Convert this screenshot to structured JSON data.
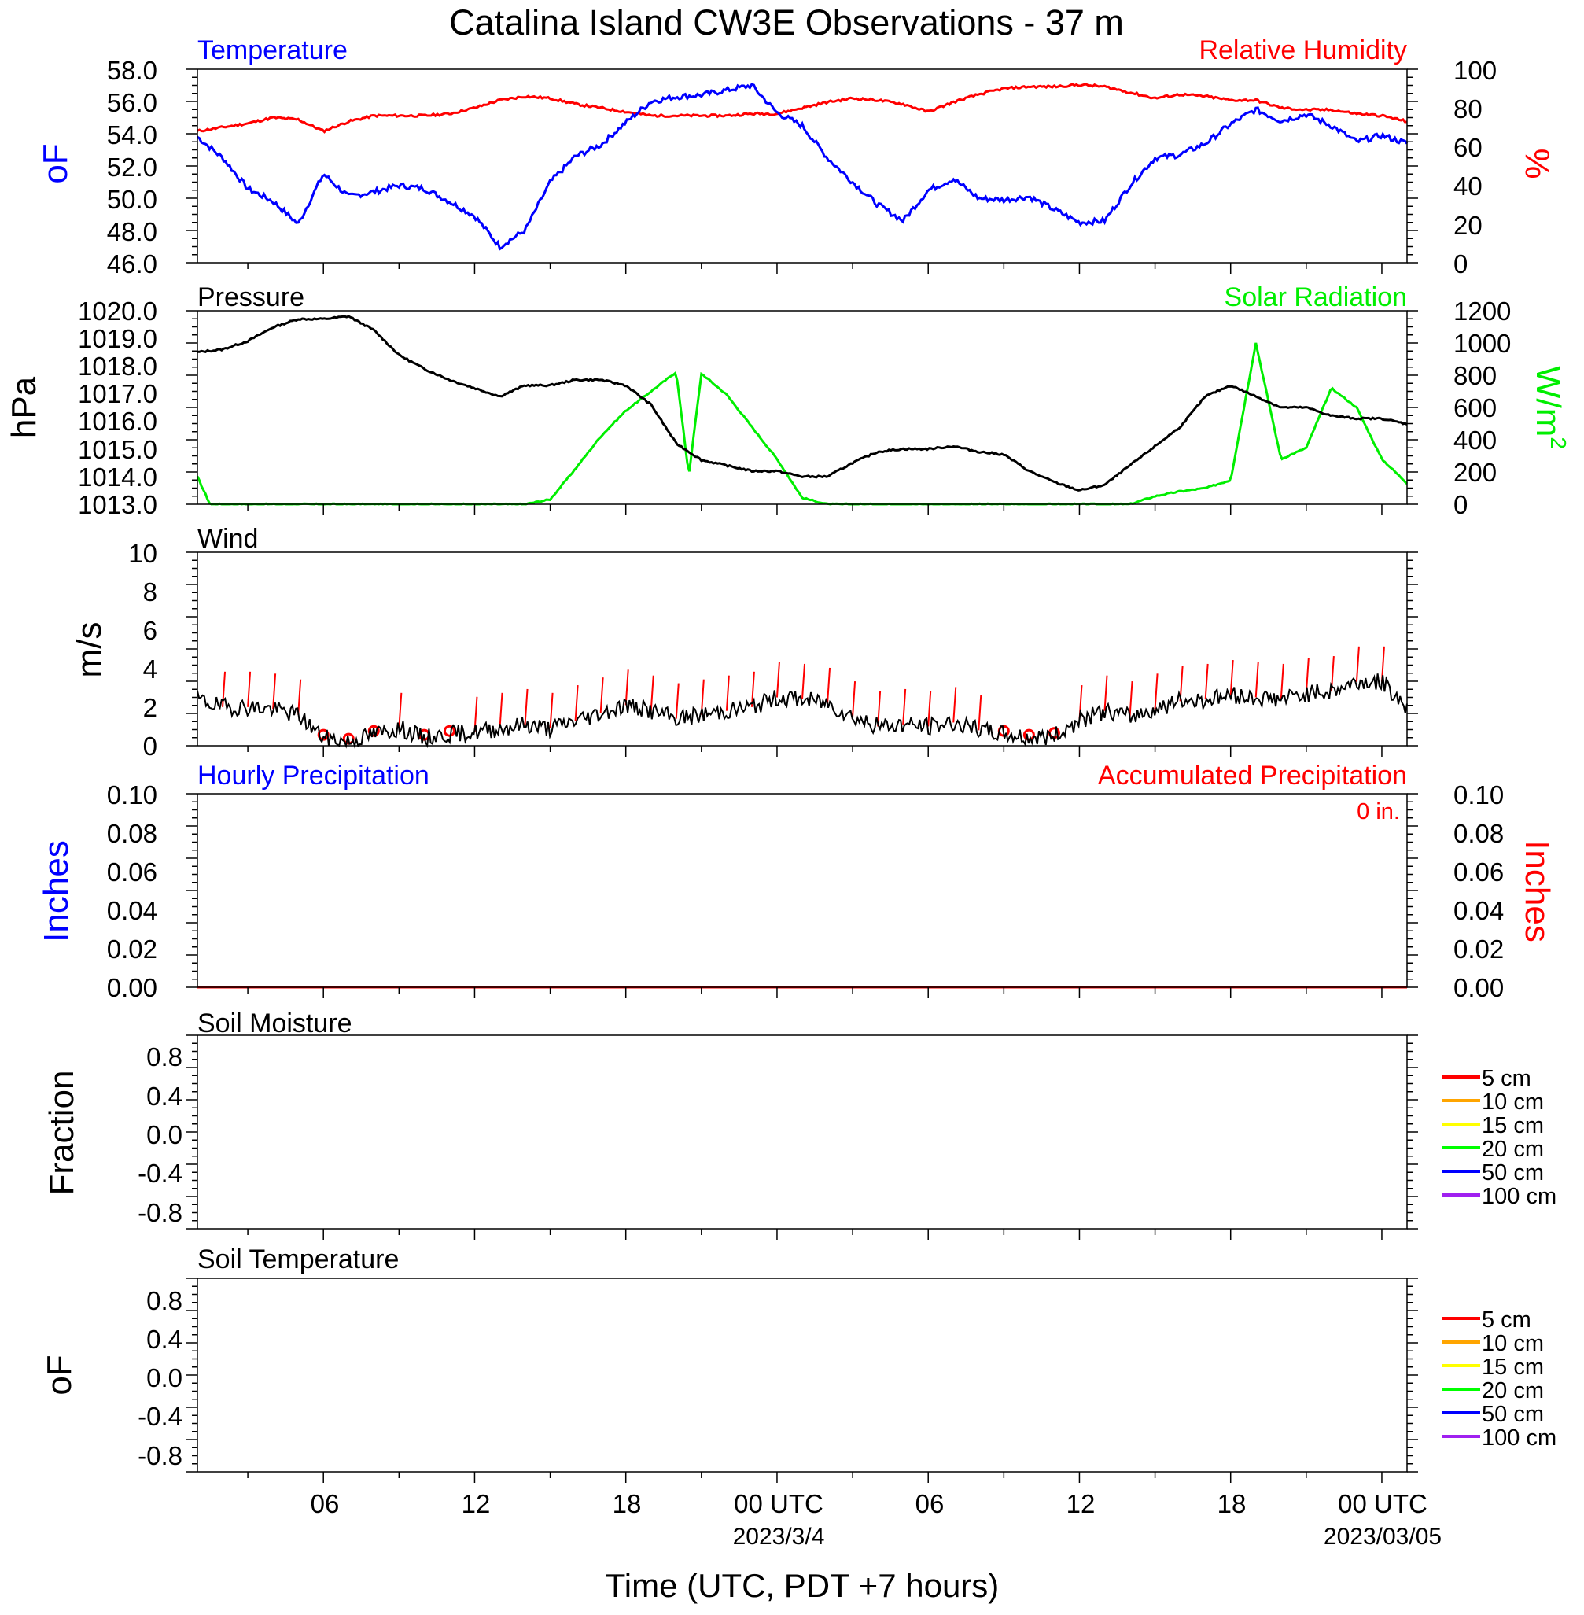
{
  "title": "Catalina Island CW3E Observations - 37 m",
  "x_axis": {
    "label": "Time (UTC, PDT +7 hours)",
    "tick_labels": [
      "06",
      "12",
      "18",
      "00 UTC",
      "06",
      "12",
      "18",
      "00 UTC"
    ],
    "tick_hours": [
      6,
      12,
      18,
      24,
      30,
      36,
      42,
      48
    ],
    "date_labels": [
      {
        "text": "2023/3/4",
        "hour": 24
      },
      {
        "text": "2023/03/05",
        "hour": 48
      }
    ],
    "range_hours": [
      1,
      49
    ]
  },
  "colors": {
    "temperature": "#0000ff",
    "relative_humidity": "#ff0000",
    "pressure": "#000000",
    "solar": "#00ee00",
    "wind": "#000000",
    "wind_barb": "#ff0000",
    "soil_5cm": "#ff0000",
    "soil_10cm": "#ffa500",
    "soil_15cm": "#ffff00",
    "soil_20cm": "#00ff00",
    "soil_50cm": "#0000ff",
    "soil_100cm": "#a020f0"
  },
  "panels": {
    "temp_rh": {
      "left_title": "Temperature",
      "right_title": "Relative Humidity",
      "left_unit": "oF",
      "right_unit": "%",
      "left_ticks": [
        "58.0",
        "56.0",
        "54.0",
        "52.0",
        "50.0",
        "48.0",
        "46.0"
      ],
      "right_ticks": [
        "100",
        "80",
        "60",
        "40",
        "20",
        "0"
      ]
    },
    "pressure_solar": {
      "left_title": "Pressure",
      "right_title": "Solar Radiation",
      "left_unit": "hPa",
      "right_unit": "W/m",
      "right_unit_sup": "2",
      "left_ticks": [
        "1020.0",
        "1019.0",
        "1018.0",
        "1017.0",
        "1016.0",
        "1015.0",
        "1014.0",
        "1013.0"
      ],
      "right_ticks": [
        "1200",
        "1000",
        "800",
        "600",
        "400",
        "200",
        "0"
      ]
    },
    "wind": {
      "left_title": "Wind",
      "left_unit": "m/s",
      "left_ticks": [
        "10",
        "8",
        "6",
        "4",
        "2",
        "0"
      ]
    },
    "precip": {
      "left_title": "Hourly Precipitation",
      "right_title": "Accumulated Precipitation",
      "accum_total": "0 in.",
      "left_unit": "Inches",
      "right_unit": "Inches",
      "left_ticks": [
        "0.10",
        "0.08",
        "0.06",
        "0.04",
        "0.02",
        "0.00"
      ],
      "right_ticks": [
        "0.10",
        "0.08",
        "0.06",
        "0.04",
        "0.02",
        "0.00"
      ]
    },
    "soil_moisture": {
      "left_title": "Soil Moisture",
      "left_unit": "Fraction",
      "left_ticks": [
        "0.8",
        "0.4",
        "0.0",
        "-0.4",
        "-0.8"
      ],
      "legend": [
        "5 cm",
        "10 cm",
        "15 cm",
        "20 cm",
        "50 cm",
        "100 cm"
      ]
    },
    "soil_temperature": {
      "left_title": "Soil Temperature",
      "left_unit": "oF",
      "left_ticks": [
        "0.8",
        "0.4",
        "0.0",
        "-0.4",
        "-0.8"
      ],
      "legend": [
        "5 cm",
        "10 cm",
        "15 cm",
        "20 cm",
        "50 cm",
        "100 cm"
      ]
    }
  },
  "chart_data": [
    {
      "type": "line",
      "title": "Temperature",
      "ylabel": "oF",
      "ylim": [
        46,
        58
      ],
      "x_hours": [
        1,
        2,
        3,
        4,
        5,
        6,
        7,
        8,
        9,
        10,
        11,
        12,
        13,
        14,
        15,
        16,
        17,
        18,
        19,
        20,
        21,
        22,
        23,
        24,
        25,
        26,
        27,
        28,
        29,
        30,
        31,
        32,
        33,
        34,
        35,
        36,
        37,
        38,
        39,
        40,
        41,
        42,
        43,
        44,
        45,
        46,
        47,
        48,
        49
      ],
      "values": [
        53.8,
        52.5,
        50.6,
        49.8,
        48.4,
        51.5,
        50.1,
        50.4,
        50.8,
        50.6,
        49.8,
        48.9,
        47.0,
        48.0,
        51.0,
        52.6,
        53.3,
        54.7,
        56.0,
        56.3,
        56.4,
        56.7,
        57.0,
        55.3,
        54.5,
        52.5,
        51.0,
        49.6,
        48.6,
        50.5,
        51.2,
        50.0,
        49.9,
        50.1,
        49.3,
        48.5,
        48.6,
        50.8,
        52.5,
        52.7,
        53.4,
        54.6,
        55.5,
        54.8,
        55.2,
        54.5,
        53.5,
        53.9,
        53.4
      ]
    },
    {
      "type": "line",
      "title": "Relative Humidity",
      "ylabel": "%",
      "ylim": [
        0,
        100
      ],
      "x_hours": [
        1,
        2,
        3,
        4,
        5,
        6,
        7,
        8,
        9,
        10,
        11,
        12,
        13,
        14,
        15,
        16,
        17,
        18,
        19,
        20,
        21,
        22,
        23,
        24,
        25,
        26,
        27,
        28,
        29,
        30,
        31,
        32,
        33,
        34,
        35,
        36,
        37,
        38,
        39,
        40,
        41,
        42,
        43,
        44,
        45,
        46,
        47,
        48,
        49
      ],
      "values": [
        68,
        70,
        72,
        75,
        74,
        68,
        73,
        76,
        76,
        76,
        77,
        80,
        84,
        86,
        85,
        82,
        80,
        78,
        76,
        76,
        76,
        76,
        77,
        77,
        80,
        83,
        85,
        84,
        82,
        78,
        83,
        87,
        90,
        91,
        91,
        92,
        91,
        88,
        85,
        87,
        86,
        84,
        84,
        80,
        79,
        79,
        77,
        76,
        73
      ]
    },
    {
      "type": "line",
      "title": "Pressure",
      "ylabel": "hPa",
      "ylim": [
        1013,
        1020
      ],
      "x_hours": [
        1,
        2,
        3,
        4,
        5,
        6,
        7,
        8,
        9,
        10,
        11,
        12,
        13,
        14,
        15,
        16,
        17,
        18,
        19,
        20,
        21,
        22,
        23,
        24,
        25,
        26,
        27,
        28,
        29,
        30,
        31,
        32,
        33,
        34,
        35,
        36,
        37,
        38,
        39,
        40,
        41,
        42,
        43,
        44,
        45,
        46,
        47,
        48,
        49
      ],
      "values": [
        1018.5,
        1018.6,
        1018.9,
        1019.4,
        1019.7,
        1019.7,
        1019.8,
        1019.3,
        1018.4,
        1017.9,
        1017.5,
        1017.2,
        1016.9,
        1017.3,
        1017.3,
        1017.5,
        1017.5,
        1017.3,
        1016.6,
        1015.2,
        1014.6,
        1014.4,
        1014.2,
        1014.2,
        1014.0,
        1014.0,
        1014.5,
        1014.9,
        1015.0,
        1015.0,
        1015.1,
        1014.9,
        1014.8,
        1014.2,
        1013.8,
        1013.5,
        1013.7,
        1014.4,
        1015.1,
        1015.8,
        1016.9,
        1017.3,
        1016.9,
        1016.5,
        1016.5,
        1016.2,
        1016.1,
        1016.1,
        1015.9
      ]
    },
    {
      "type": "line",
      "title": "Solar Radiation",
      "ylabel": "W/m2",
      "ylim": [
        0,
        1200
      ],
      "x_hours": [
        1,
        1.5,
        2,
        3,
        4,
        5,
        6,
        7,
        8,
        9,
        10,
        11,
        12,
        13,
        14,
        15,
        16,
        17,
        18,
        19,
        20,
        20.5,
        21,
        22,
        23,
        24,
        25,
        26,
        27,
        28,
        29,
        30,
        31,
        32,
        33,
        34,
        35,
        36,
        37,
        38,
        39,
        40,
        41,
        42,
        43,
        44,
        45,
        46,
        47,
        48,
        49
      ],
      "values": [
        170,
        0,
        0,
        0,
        0,
        0,
        0,
        0,
        0,
        0,
        0,
        0,
        0,
        0,
        0,
        30,
        220,
        420,
        580,
        700,
        820,
        180,
        810,
        680,
        480,
        280,
        40,
        0,
        0,
        0,
        0,
        0,
        0,
        0,
        0,
        0,
        0,
        0,
        0,
        0,
        50,
        80,
        100,
        150,
        1000,
        280,
        350,
        720,
        600,
        280,
        130
      ]
    },
    {
      "type": "line",
      "title": "Wind",
      "ylabel": "m/s",
      "ylim": [
        0,
        10
      ],
      "x_hours": [
        1,
        2,
        3,
        4,
        5,
        6,
        7,
        8,
        9,
        10,
        11,
        12,
        13,
        14,
        15,
        16,
        17,
        18,
        19,
        20,
        21,
        22,
        23,
        24,
        25,
        26,
        27,
        28,
        29,
        30,
        31,
        32,
        33,
        34,
        35,
        36,
        37,
        38,
        39,
        40,
        41,
        42,
        43,
        44,
        45,
        46,
        47,
        48,
        49
      ],
      "values": [
        2.4,
        2.0,
        2.0,
        1.9,
        1.6,
        0.4,
        0.2,
        0.6,
        0.9,
        0.4,
        0.6,
        0.7,
        0.9,
        1.1,
        0.9,
        1.3,
        1.7,
        2.1,
        1.8,
        1.4,
        1.6,
        1.8,
        2.0,
        2.5,
        2.4,
        2.2,
        1.5,
        1.0,
        1.1,
        1.0,
        1.2,
        0.8,
        0.6,
        0.4,
        0.5,
        1.3,
        1.8,
        1.5,
        1.9,
        2.3,
        2.4,
        2.6,
        2.5,
        2.4,
        2.7,
        2.8,
        3.3,
        3.3,
        2.0
      ]
    },
    {
      "type": "line",
      "title": "Hourly Precipitation",
      "ylabel": "Inches",
      "ylim": [
        0,
        0.1
      ],
      "x_hours": [
        1,
        49
      ],
      "values": [
        0,
        0
      ]
    },
    {
      "type": "line",
      "title": "Accumulated Precipitation",
      "ylabel": "Inches",
      "ylim": [
        0,
        0.1
      ],
      "x_hours": [
        1,
        49
      ],
      "values": [
        0,
        0
      ]
    }
  ]
}
